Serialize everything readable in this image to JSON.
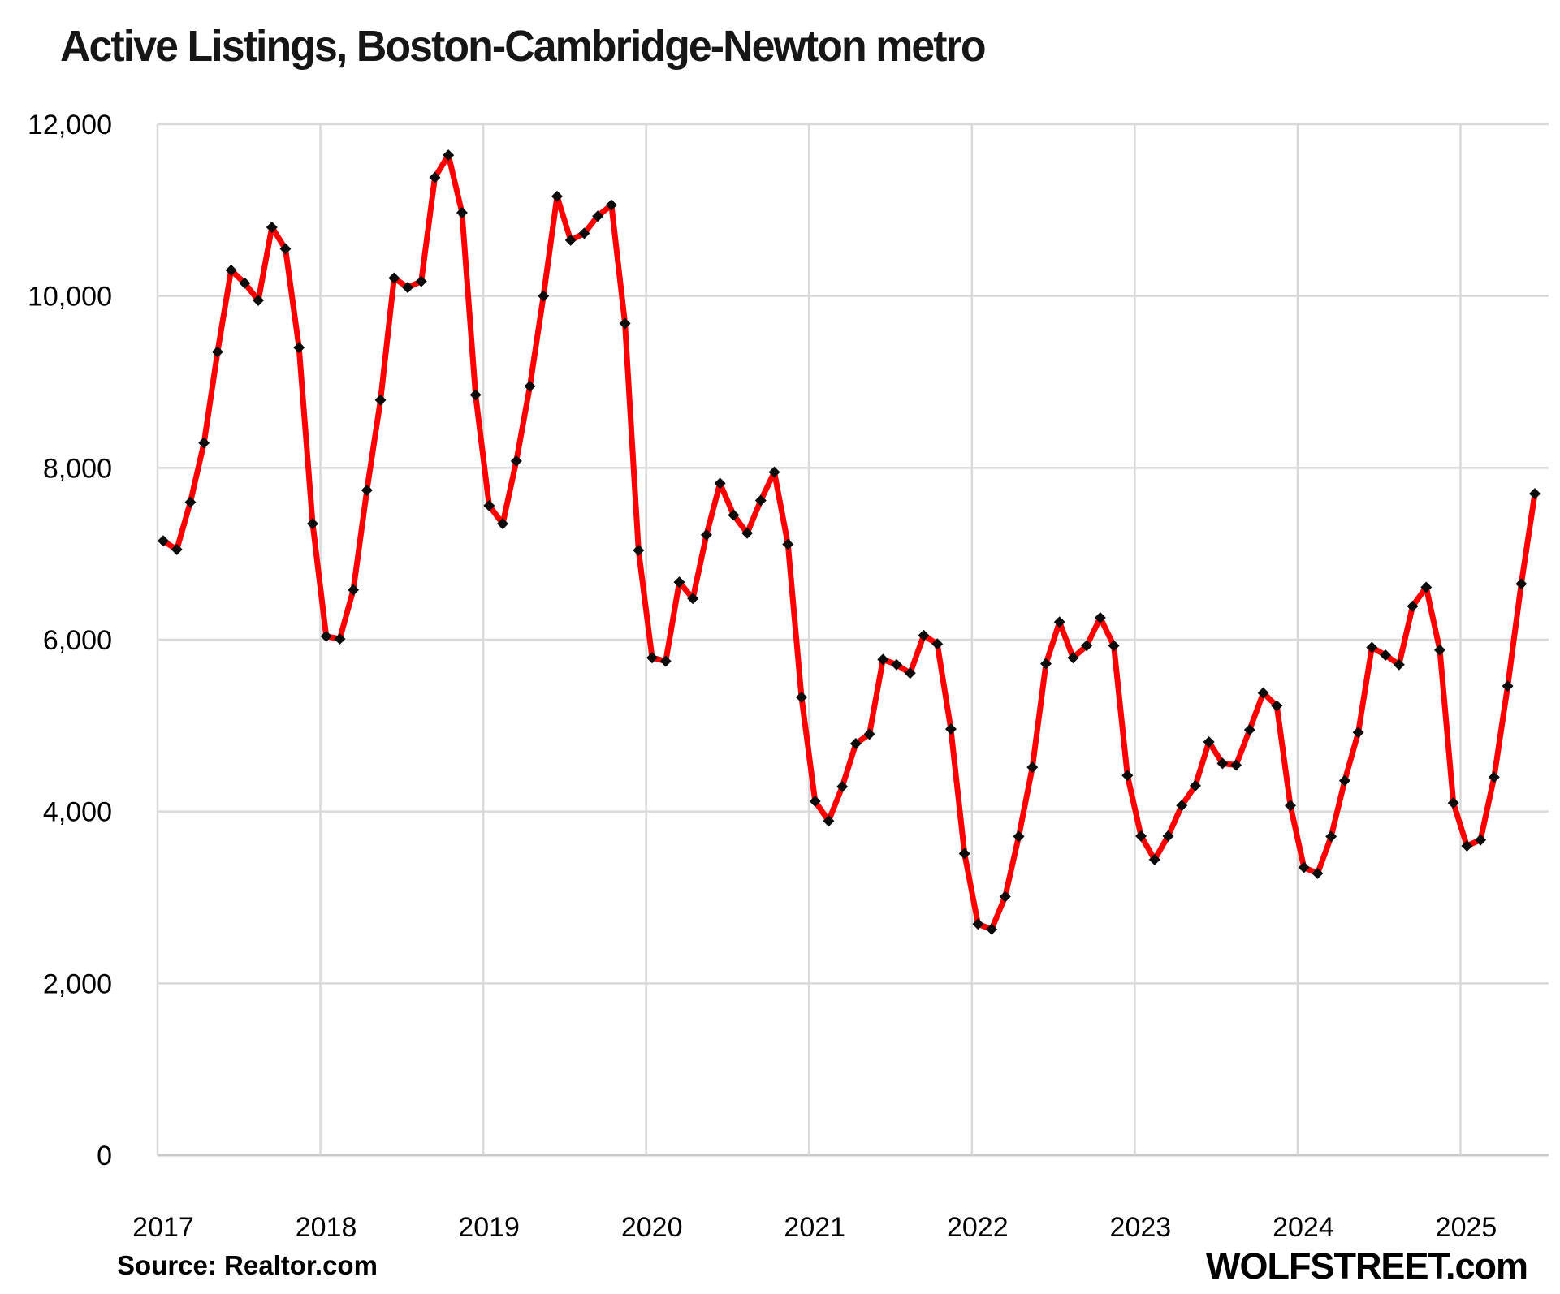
{
  "title": "Active Listings, Boston-Cambridge-Newton metro",
  "footer": {
    "source": "Source: Realtor.com",
    "watermark": "WOLFSTREET.com"
  },
  "chart_data": {
    "type": "line",
    "title": "Active Listings, Boston-Cambridge-Newton metro",
    "xlabel": "",
    "ylabel": "",
    "x_unit": "month",
    "start_month": "2017-01",
    "end_month": "2025-06",
    "x_tick_labels": [
      "2017",
      "2018",
      "2019",
      "2020",
      "2021",
      "2022",
      "2023",
      "2024",
      "2025"
    ],
    "y_tick_labels": [
      "0",
      "2,000",
      "4,000",
      "6,000",
      "8,000",
      "10,000",
      "12,000"
    ],
    "y_tick_values": [
      0,
      2000,
      4000,
      6000,
      8000,
      10000,
      12000
    ],
    "ylim": [
      0,
      12000
    ],
    "grid": true,
    "legend": "none",
    "colors": {
      "line": "#fe0000",
      "marker": "#0b0b0b",
      "gridline": "#d9d9d9",
      "axis_line": "#c9c9c9",
      "text": "#000000"
    },
    "marker_shape": "diamond",
    "series": [
      {
        "name": "Active listings",
        "values": [
          7150,
          7050,
          7600,
          8290,
          9350,
          10300,
          10150,
          9950,
          10800,
          10550,
          9400,
          7350,
          6040,
          6010,
          6580,
          7740,
          8790,
          10210,
          10100,
          10170,
          11380,
          11640,
          10970,
          8850,
          7560,
          7350,
          8080,
          8950,
          10000,
          11160,
          10650,
          10730,
          10930,
          11060,
          9680,
          7040,
          5790,
          5750,
          6670,
          6480,
          7220,
          7820,
          7450,
          7240,
          7620,
          7950,
          7110,
          5330,
          4120,
          3890,
          4290,
          4790,
          4900,
          5770,
          5710,
          5610,
          6050,
          5950,
          4960,
          3510,
          2690,
          2630,
          3010,
          3710,
          4515,
          5720,
          6205,
          5790,
          5930,
          6255,
          5930,
          4420,
          3715,
          3440,
          3715,
          4070,
          4300,
          4810,
          4560,
          4540,
          4950,
          5380,
          5230,
          4070,
          3350,
          3280,
          3710,
          4360,
          4920,
          5910,
          5820,
          5710,
          6390,
          6610,
          5880,
          4100,
          3600,
          3670,
          4400,
          5460,
          6650,
          7700
        ]
      }
    ]
  }
}
